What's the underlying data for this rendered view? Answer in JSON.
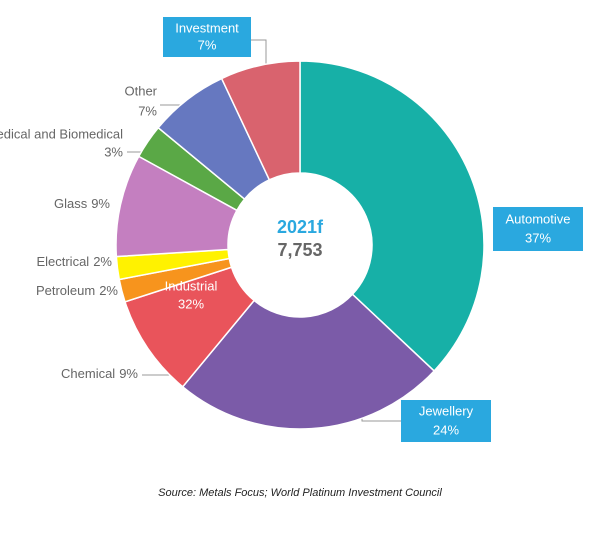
{
  "chart_data": {
    "type": "donut",
    "categories": [
      "Automotive",
      "Jewellery",
      "Chemical",
      "Petroleum",
      "Electrical",
      "Glass",
      "Medical and Biomedical",
      "Other",
      "Investment"
    ],
    "values": [
      37,
      24,
      9,
      2,
      2,
      9,
      3,
      7,
      7
    ],
    "value_labels": [
      "37%",
      "24%",
      "9%",
      "2%",
      "2%",
      "9%",
      "3%",
      "7%",
      "7%"
    ],
    "colors": [
      "#17b0a7",
      "#7b5ba8",
      "#e9545b",
      "#f7941d",
      "#fff200",
      "#c47fc0",
      "#5aa846",
      "#6678c0",
      "#d9636e"
    ],
    "center_title": "2021f",
    "center_total": "7,753",
    "group_label": {
      "name": "Industrial",
      "value_label": "32%"
    },
    "source": "Source: Metals Focus; World Platinum Investment Council"
  }
}
